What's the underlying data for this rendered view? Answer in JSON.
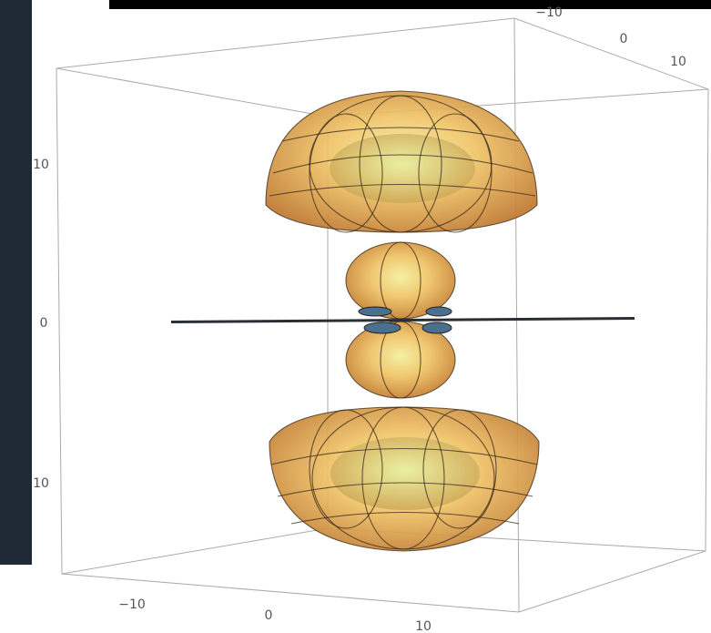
{
  "axes": {
    "top": [
      "−10",
      "0",
      "10"
    ],
    "left": [
      "10",
      "0",
      "10"
    ],
    "bottom": [
      "−10",
      "0",
      "10"
    ]
  }
}
